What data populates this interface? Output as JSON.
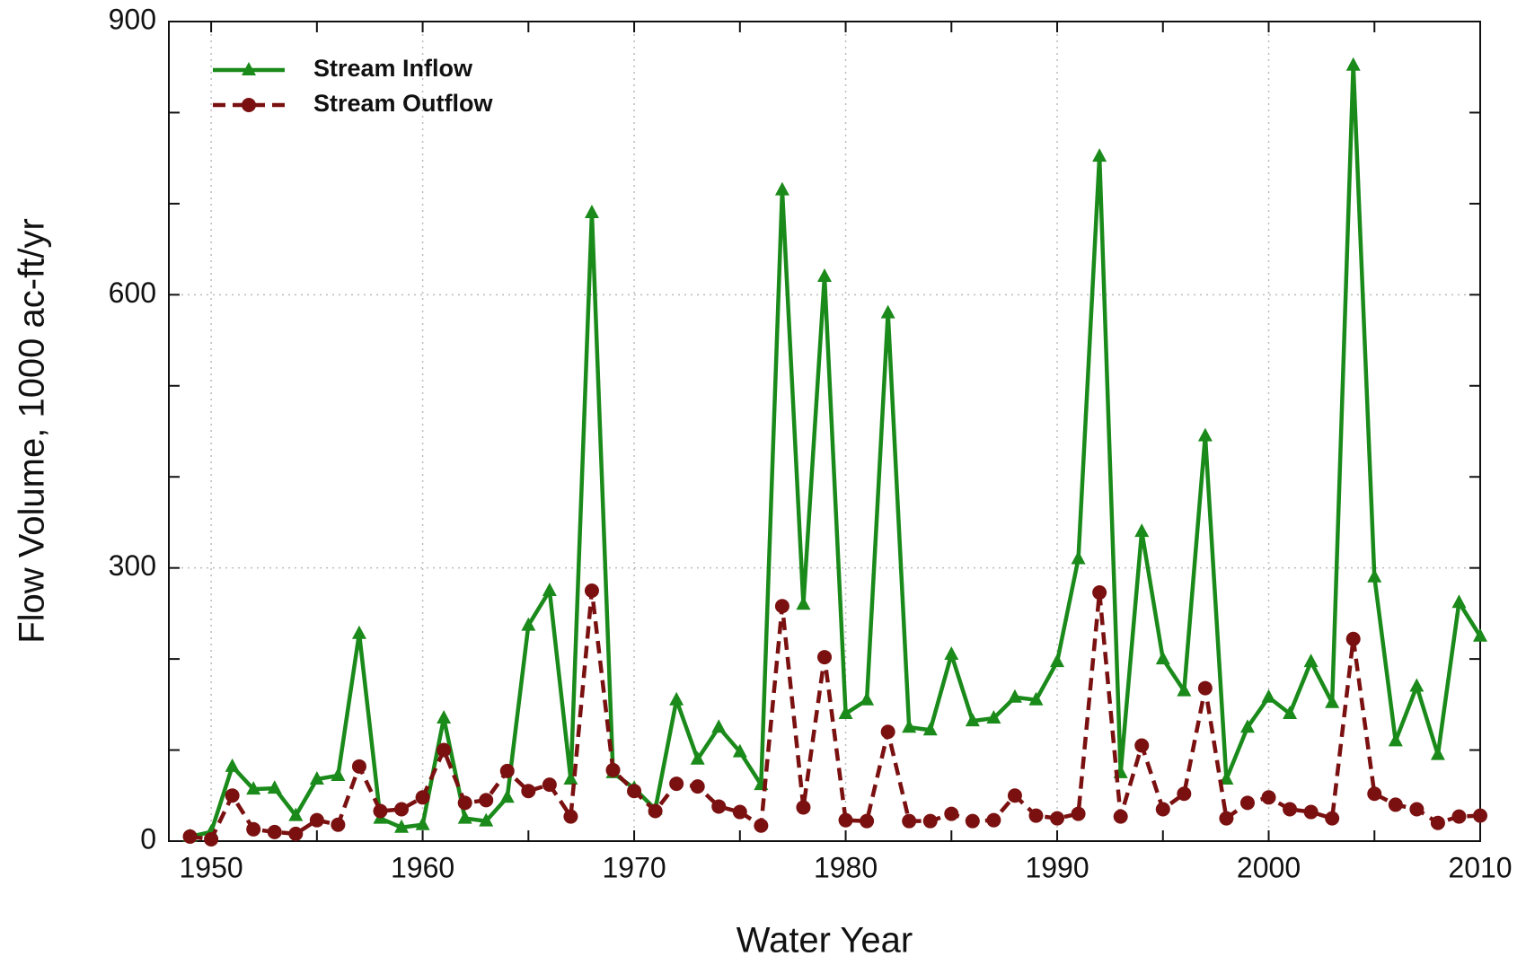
{
  "chart_data": {
    "type": "line",
    "xlabel": "Water Year",
    "ylabel": "Flow Volume, 1000 ac-ft/yr",
    "x": [
      1949,
      1950,
      1951,
      1952,
      1953,
      1954,
      1955,
      1956,
      1957,
      1958,
      1959,
      1960,
      1961,
      1962,
      1963,
      1964,
      1965,
      1966,
      1967,
      1968,
      1969,
      1970,
      1971,
      1972,
      1973,
      1974,
      1975,
      1976,
      1977,
      1978,
      1979,
      1980,
      1981,
      1982,
      1983,
      1984,
      1985,
      1986,
      1987,
      1988,
      1989,
      1990,
      1991,
      1992,
      1993,
      1994,
      1995,
      1996,
      1997,
      1998,
      1999,
      2000,
      2001,
      2002,
      2003,
      2004,
      2005,
      2006,
      2007,
      2008,
      2009,
      2010
    ],
    "series": [
      {
        "name": "Stream Inflow",
        "color": "#1a8a1a",
        "marker": "triangle",
        "dash": false,
        "values": [
          5,
          10,
          82,
          57,
          58,
          28,
          68,
          72,
          228,
          25,
          15,
          18,
          135,
          25,
          22,
          48,
          237,
          275,
          68,
          690,
          75,
          58,
          35,
          155,
          90,
          125,
          98,
          62,
          715,
          260,
          620,
          140,
          155,
          580,
          125,
          122,
          205,
          132,
          135,
          158,
          155,
          197,
          310,
          752,
          75,
          340,
          200,
          165,
          445,
          68,
          125,
          158,
          140,
          197,
          152,
          852,
          290,
          110,
          170,
          95,
          262,
          225
        ]
      },
      {
        "name": "Stream Outflow",
        "color": "#7a1010",
        "marker": "circle",
        "dash": true,
        "values": [
          5,
          2,
          50,
          13,
          10,
          8,
          23,
          18,
          82,
          33,
          35,
          48,
          100,
          42,
          45,
          77,
          55,
          62,
          27,
          275,
          78,
          55,
          33,
          63,
          60,
          38,
          32,
          17,
          258,
          37,
          202,
          23,
          22,
          120,
          22,
          22,
          30,
          22,
          23,
          50,
          28,
          25,
          30,
          273,
          27,
          105,
          35,
          52,
          168,
          25,
          42,
          48,
          35,
          32,
          25,
          222,
          52,
          40,
          35,
          20,
          27,
          28
        ]
      }
    ],
    "xlim": [
      1948,
      2010
    ],
    "xticks": [
      1950,
      1960,
      1970,
      1980,
      1990,
      2000,
      2010
    ],
    "xminorticks": [
      1955,
      1965,
      1975,
      1985,
      1995,
      2005
    ],
    "ylim": [
      0,
      900
    ],
    "yticks": [
      0,
      300,
      600,
      900
    ],
    "yminorticks": [
      100,
      200,
      400,
      500,
      700,
      800
    ],
    "grid": true,
    "legend": "upper left"
  }
}
